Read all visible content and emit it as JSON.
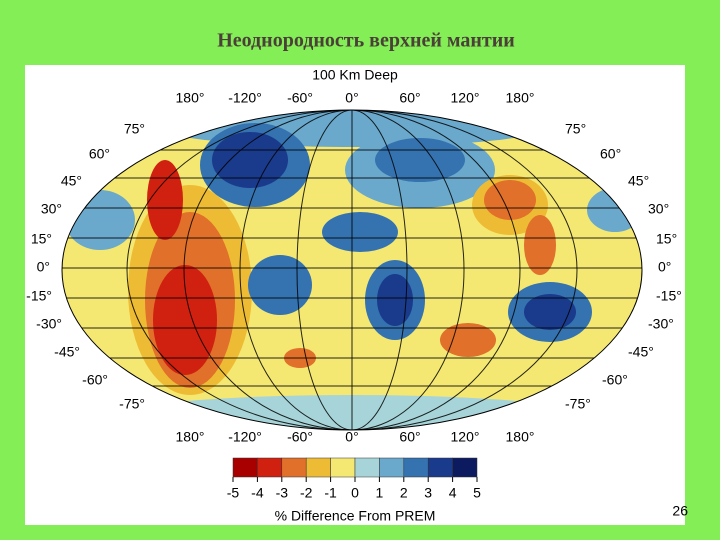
{
  "title": "Неоднородность верхней мантии",
  "map": {
    "subtitle": "100 Km Deep",
    "lon_labels": [
      "180°",
      "-120°",
      "-60°",
      "0°",
      "60°",
      "120°",
      "180°"
    ],
    "lat_labels_left": [
      "75°",
      "60°",
      "45°",
      "30°",
      "15°",
      "0°",
      "-15°",
      "-30°",
      "-45°",
      "-60°",
      "-75°"
    ],
    "lat_labels_right": [
      "75°",
      "60°",
      "45°",
      "30°",
      "15°",
      "0°",
      "-15°",
      "-30°",
      "-45°",
      "-60°",
      "-75°"
    ]
  },
  "colorbar": {
    "ticks": [
      -5,
      -4,
      -3,
      -2,
      -1,
      0,
      1,
      2,
      3,
      4,
      5
    ],
    "colors": [
      "#a80000",
      "#d02010",
      "#e0702a",
      "#eebc34",
      "#f4e872",
      "#a6d4d8",
      "#6aa8cc",
      "#3472b0",
      "#1a3a8c",
      "#0c1a60"
    ],
    "label": "% Difference From PREM"
  },
  "page_number": "26"
}
